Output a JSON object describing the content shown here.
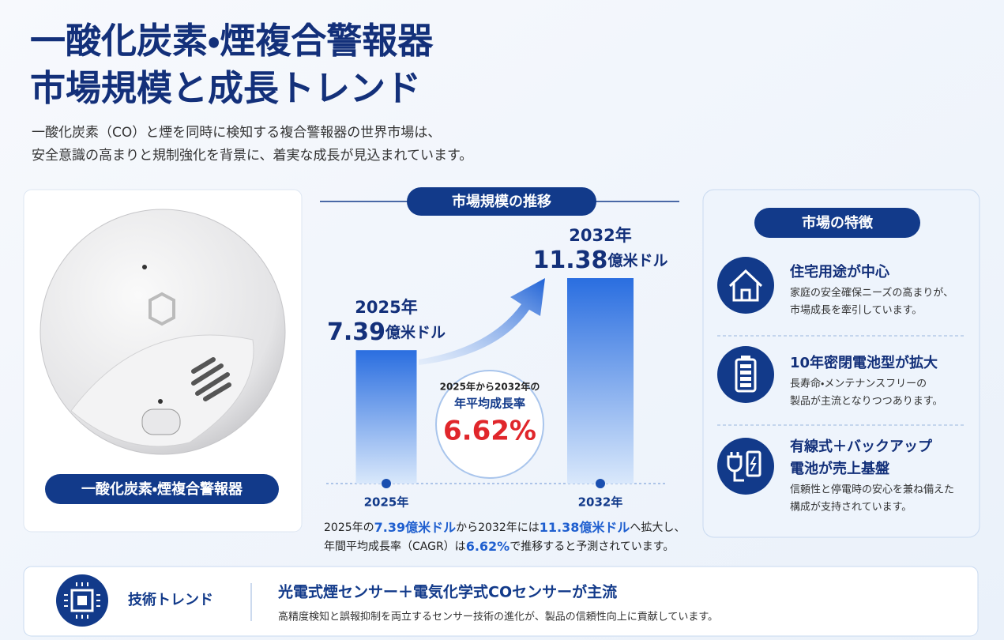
{
  "header": {
    "title_lines": [
      "一酸化炭素・煙複合警報器",
      "市場規模と成長トレンド"
    ],
    "subtitle_lines": [
      "一酸化炭素（CO）と煙を同時に検知する複合警報器の世界市場は、",
      "安全意識の高まりと規制強化を背景に、着実な成長が見込まれています。"
    ]
  },
  "product": {
    "label": "一酸化炭素・煙複合警報器"
  },
  "market_size": {
    "heading": "市場規模の推移",
    "bars": [
      {
        "year": "2025年",
        "value": 7.39,
        "unit": "億米ドル",
        "axis_label": "2025年"
      },
      {
        "year": "2032年",
        "value": 11.38,
        "unit": "億米ドル",
        "axis_label": "2032年"
      }
    ],
    "cagr": {
      "period": "2025年から2032年の",
      "label": "年平均成長率",
      "value": 6.62,
      "value_label": "6.62%"
    },
    "summary_lines": [
      [
        {
          "text": "2025年の",
          "highlight": false
        },
        {
          "text": "7.39億米ドル",
          "highlight": true
        },
        {
          "text": "から2032年には",
          "highlight": false
        },
        {
          "text": "11.38億米ドル",
          "highlight": true
        },
        {
          "text": "へ拡大し、",
          "highlight": false
        }
      ],
      [
        {
          "text": "年間平均成長率（CAGR）は",
          "highlight": false
        },
        {
          "text": "6.62%",
          "highlight": true
        },
        {
          "text": "で推移すると予測されています。",
          "highlight": false
        }
      ]
    ]
  },
  "features": {
    "heading": "市場の特徴",
    "items": [
      {
        "title_lines": [
          "住宅用途が中心"
        ],
        "desc_lines": [
          "家庭の安全確保ニーズの高まりが、",
          "市場成長を牽引しています。"
        ]
      },
      {
        "title_lines": [
          "10年密閉電池型が拡大"
        ],
        "desc_lines": [
          "長寿命・メンテナンスフリーの",
          "製品が主流となりつつあります。"
        ]
      },
      {
        "title_lines": [
          "有線式＋バックアップ",
          "電池が売上基盤"
        ],
        "desc_lines": [
          "信頼性と停電時の安心を兼ね備えた",
          "構成が支持されています。"
        ]
      }
    ]
  },
  "tech_trend": {
    "label": "技術トレンド",
    "title": "光電式煙センサー＋電気化学式COセンサーが主流",
    "desc": "高精度検知と誤報抑制を両立するセンサー技術の進化が、製品の信頼性向上に貢献しています。"
  }
}
